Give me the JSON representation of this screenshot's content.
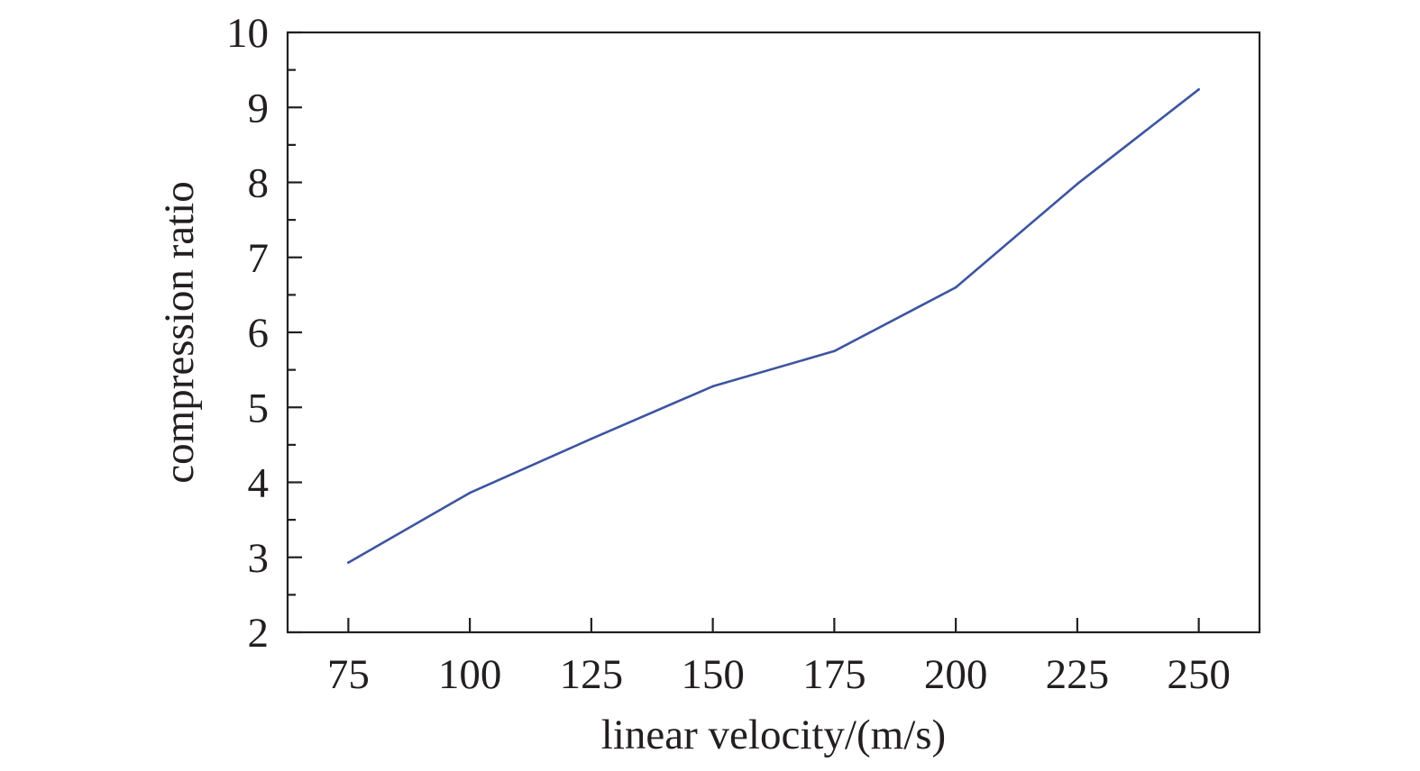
{
  "chart_data": {
    "type": "line",
    "title": "",
    "xlabel": "linear velocity/(m/s)",
    "ylabel": "compression ratio",
    "xlim": [
      62.5,
      262.5
    ],
    "ylim": [
      2,
      10
    ],
    "x_ticks": [
      75,
      100,
      125,
      150,
      175,
      200,
      225,
      250
    ],
    "y_ticks": [
      2,
      3,
      4,
      5,
      6,
      7,
      8,
      9,
      10
    ],
    "grid": false,
    "legend": "none",
    "series": [
      {
        "color": "#3d55a0",
        "points": [
          {
            "x": 75,
            "y": 2.93
          },
          {
            "x": 100,
            "y": 3.86
          },
          {
            "x": 125,
            "y": 4.58
          },
          {
            "x": 150,
            "y": 5.28
          },
          {
            "x": 175,
            "y": 5.75
          },
          {
            "x": 200,
            "y": 6.6
          },
          {
            "x": 225,
            "y": 7.98
          },
          {
            "x": 250,
            "y": 9.24
          }
        ]
      }
    ]
  }
}
